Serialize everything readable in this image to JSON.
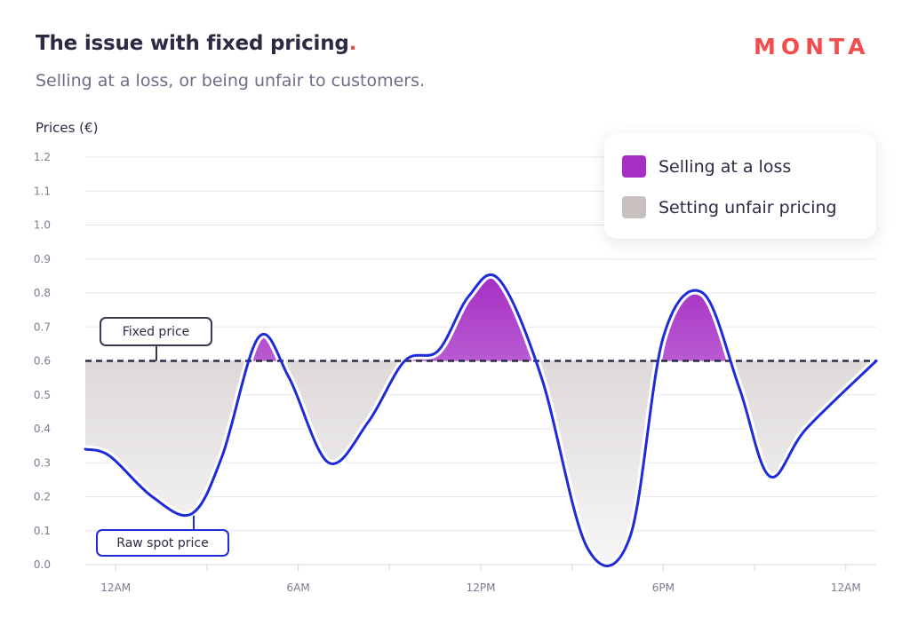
{
  "header": {
    "title": "The issue with fixed pricing",
    "title_dot": ".",
    "subtitle": "Selling at a loss, or being unfair to customers.",
    "logo_text": "MONTA"
  },
  "colors": {
    "title": "#2c2b44",
    "accent_red": "#f04e4e",
    "spot_line": "#1f2bd8",
    "fixed_line": "#2c2b44",
    "loss_fill": "#a52ec4",
    "unfair_fill": "#c8c1c0"
  },
  "chart_data": {
    "type": "line",
    "ylabel": "Prices (€)",
    "ylim": [
      0,
      1.2
    ],
    "yticks": [
      "0.0",
      "0.1",
      "0.2",
      "0.3",
      "0.4",
      "0.5",
      "0.6",
      "0.7",
      "0.8",
      "0.9",
      "1.0",
      "1.1",
      "1.2"
    ],
    "xlim": [
      0,
      26
    ],
    "xtick_labels": [
      "12AM",
      "6AM",
      "12PM",
      "6PM",
      "12AM"
    ],
    "xtick_positions": [
      0,
      6,
      12,
      18,
      24
    ],
    "x_unit": "hours",
    "fixed_price": 0.6,
    "series": [
      {
        "label": "Raw spot price",
        "x": [
          0,
          0.8,
          2.2,
          3.5,
          4.5,
          5.7,
          6.7,
          8.0,
          9.3,
          10.5,
          11.6,
          12.6,
          13.6,
          15.0,
          16.5,
          17.9,
          19.0,
          20.3,
          21.5,
          22.5,
          23.7,
          26.0
        ],
        "y": [
          0.34,
          0.32,
          0.2,
          0.15,
          0.32,
          0.67,
          0.55,
          0.3,
          0.42,
          0.6,
          0.63,
          0.79,
          0.84,
          0.55,
          0.05,
          0.08,
          0.67,
          0.8,
          0.52,
          0.26,
          0.4,
          0.6
        ]
      }
    ],
    "legend": [
      {
        "label": "Selling at a loss",
        "color": "#a52ec4"
      },
      {
        "label": "Setting unfair pricing",
        "color": "#c8c1c0"
      }
    ],
    "annotations": [
      {
        "label": "Fixed price"
      },
      {
        "label": "Raw spot price"
      }
    ],
    "legend_position": "top-right",
    "grid": true
  }
}
